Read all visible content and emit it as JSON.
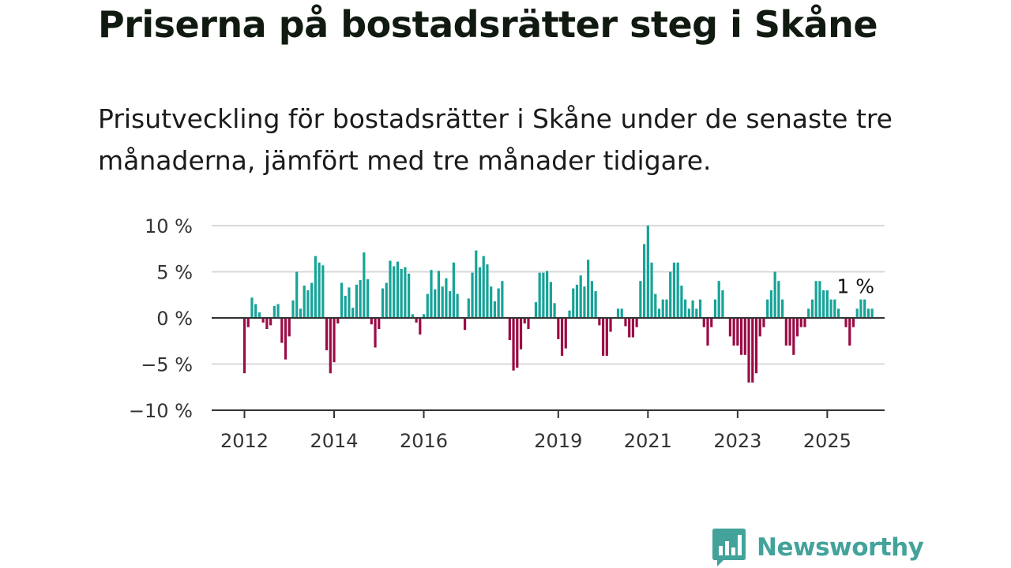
{
  "header": {
    "title": "Priserna på bostadsrätter steg i Skåne",
    "subtitle": "Prisutveckling för bostadsrätter i Skåne under de senaste tre månaderna, jämfört med tre månader tidigare."
  },
  "brand": {
    "name": "Newsworthy",
    "icon": "newsworthy-logo-icon",
    "color": "#43a39b"
  },
  "colors": {
    "positive": "#17a398",
    "negative": "#9b0b45",
    "grid": "#d9d9d9",
    "zero_line": "#333333",
    "text": "#333333"
  },
  "chart_data": {
    "type": "bar",
    "title": "",
    "xlabel": "",
    "ylabel": "",
    "ylim": [
      -10,
      10
    ],
    "y_ticks": [
      10,
      5,
      0,
      -5,
      -10
    ],
    "y_tick_labels": [
      "10 %",
      "5 %",
      "0 %",
      "−5 %",
      "−10 %"
    ],
    "x_tick_labels": [
      "2012",
      "2014",
      "2016",
      "2019",
      "2021",
      "2023",
      "2025"
    ],
    "x_tick_dates": [
      "2012-01",
      "2014-01",
      "2016-01",
      "2019-01",
      "2021-01",
      "2023-01",
      "2025-01"
    ],
    "start_month": "2012-01",
    "grid": true,
    "annotation": {
      "text": "1 %",
      "month": "2025-09",
      "value": 1
    },
    "series": [
      {
        "values": [
          -6,
          -1,
          2.2,
          1.5,
          0.6,
          -0.5,
          -1.2,
          -0.8,
          1.3,
          1.5,
          -2.7,
          -4.5,
          -2,
          1.9,
          5,
          1,
          3.5,
          3,
          3.8,
          6.7,
          6,
          5.7,
          -3.5,
          -6,
          -4.8,
          -0.6,
          3.8,
          2.4,
          3.3,
          1.1,
          3.6,
          4.1,
          7.1,
          4.2,
          -0.7,
          -3.2,
          -1.2,
          3.2,
          3.8,
          6.2,
          5.6,
          6.1,
          5.3,
          5.5,
          4.8,
          0.4,
          -0.5,
          -1.8,
          0.4,
          2.6,
          5.2,
          3.1,
          5.1,
          3.4,
          4.3,
          2.9,
          6,
          2.6,
          0,
          -1.3,
          2.1,
          4.9,
          7.3,
          5.5,
          6.7,
          5.8,
          3.4,
          1.8,
          3.2,
          4,
          0,
          -2.4,
          -5.7,
          -5.4,
          -3.4,
          -0.6,
          -1.2,
          0,
          1.7,
          4.9,
          4.9,
          5.1,
          3.9,
          1.6,
          -2.3,
          -4.1,
          -3.3,
          0.8,
          3.2,
          3.6,
          4.6,
          3.4,
          6.3,
          4,
          2.9,
          -0.8,
          -4.1,
          -4.1,
          -1.5,
          0,
          1,
          1,
          -0.9,
          -2.1,
          -2.1,
          -1,
          4,
          8,
          10,
          6,
          2.6,
          1,
          2,
          2,
          5,
          6,
          6,
          3.5,
          2,
          1,
          1.9,
          1,
          2,
          -1,
          -3,
          -1,
          2,
          4,
          3,
          0,
          -2,
          -3,
          -3,
          -4,
          -4,
          -7,
          -7,
          -6,
          -2,
          -1,
          2,
          3,
          5,
          4,
          2,
          -3,
          -3,
          -4,
          -2,
          -1,
          -1,
          1,
          2,
          4,
          4,
          3,
          3,
          2,
          2,
          1,
          0,
          -1,
          -3,
          -1,
          1,
          2,
          2,
          1,
          1
        ]
      }
    ]
  }
}
